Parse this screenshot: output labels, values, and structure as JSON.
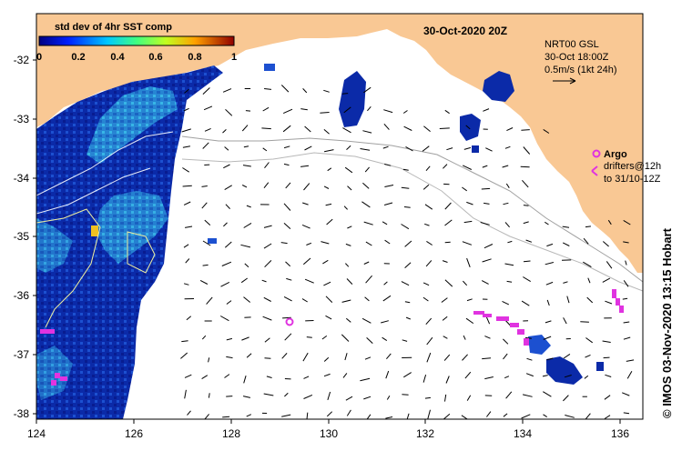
{
  "map": {
    "date_title": "30-Oct-2020 20Z",
    "colorbar": {
      "title": "std dev of 4hr SST comp",
      "ticks": [
        "0",
        "0.2",
        "0.4",
        "0.6",
        "0.8",
        "1"
      ]
    },
    "current_info": {
      "line1": "NRT00 GSL",
      "line2": "30-Oct 18:00Z",
      "line3": "0.5m/s (1kt 24h)"
    },
    "argo_legend": {
      "label": "Argo",
      "drifters_line1": "drifters@12h",
      "drifters_line2": "to 31/10-12Z"
    },
    "credit": "© IMOS 03-Nov-2020 13:15 Hobart",
    "lat_ticks": [
      "-32",
      "-33",
      "-34",
      "-35",
      "-36",
      "-37",
      "-38"
    ],
    "lon_ticks": [
      "124",
      "126",
      "128",
      "130",
      "132",
      "134",
      "136"
    ],
    "colors": {
      "land": "#f9c894",
      "ocean": "#ffffff",
      "drifter": "#e033e0",
      "sst_low": "#0a1fa0",
      "sst_mid": "#2ea6e0",
      "sst_high": "#f0d020"
    }
  }
}
